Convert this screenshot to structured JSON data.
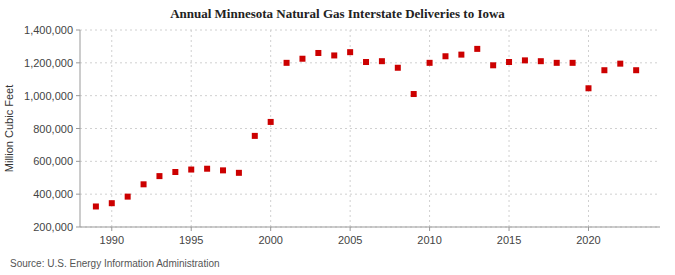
{
  "chart_data": {
    "type": "scatter",
    "title": "Annual Minnesota Natural Gas Interstate Deliveries to Iowa",
    "ylabel": "Million Cubic Feet",
    "annotations": [
      "Source: U.S. Energy Information Administration"
    ],
    "x": [
      1989,
      1990,
      1991,
      1992,
      1993,
      1994,
      1995,
      1996,
      1997,
      1998,
      1999,
      2000,
      2001,
      2002,
      2003,
      2004,
      2005,
      2006,
      2007,
      2008,
      2009,
      2010,
      2011,
      2012,
      2013,
      2014,
      2015,
      2016,
      2017,
      2018,
      2019,
      2020,
      2021,
      2022,
      2023
    ],
    "values": [
      325000,
      345000,
      385000,
      460000,
      510000,
      535000,
      550000,
      555000,
      545000,
      530000,
      755000,
      840000,
      1200000,
      1225000,
      1260000,
      1245000,
      1265000,
      1205000,
      1210000,
      1170000,
      1010000,
      1200000,
      1240000,
      1250000,
      1285000,
      1185000,
      1205000,
      1215000,
      1210000,
      1200000,
      1200000,
      1045000,
      1155000,
      1195000,
      1155000
    ],
    "color": "#cc0000",
    "marker": "square",
    "xlim": [
      1988,
      2024.5
    ],
    "xticks": [
      1990,
      1995,
      2000,
      2005,
      2010,
      2015,
      2020
    ],
    "ylim": [
      200000,
      1400000
    ],
    "yticks": [
      {
        "value": 200000,
        "label": "200,000"
      },
      {
        "value": 400000,
        "label": "400,000"
      },
      {
        "value": 600000,
        "label": "600,000"
      },
      {
        "value": 800000,
        "label": "800,000"
      },
      {
        "value": 1000000,
        "label": "1,000,000"
      },
      {
        "value": 1200000,
        "label": "1,200,000"
      },
      {
        "value": 1400000,
        "label": "1,400,000"
      }
    ],
    "grid": true
  }
}
